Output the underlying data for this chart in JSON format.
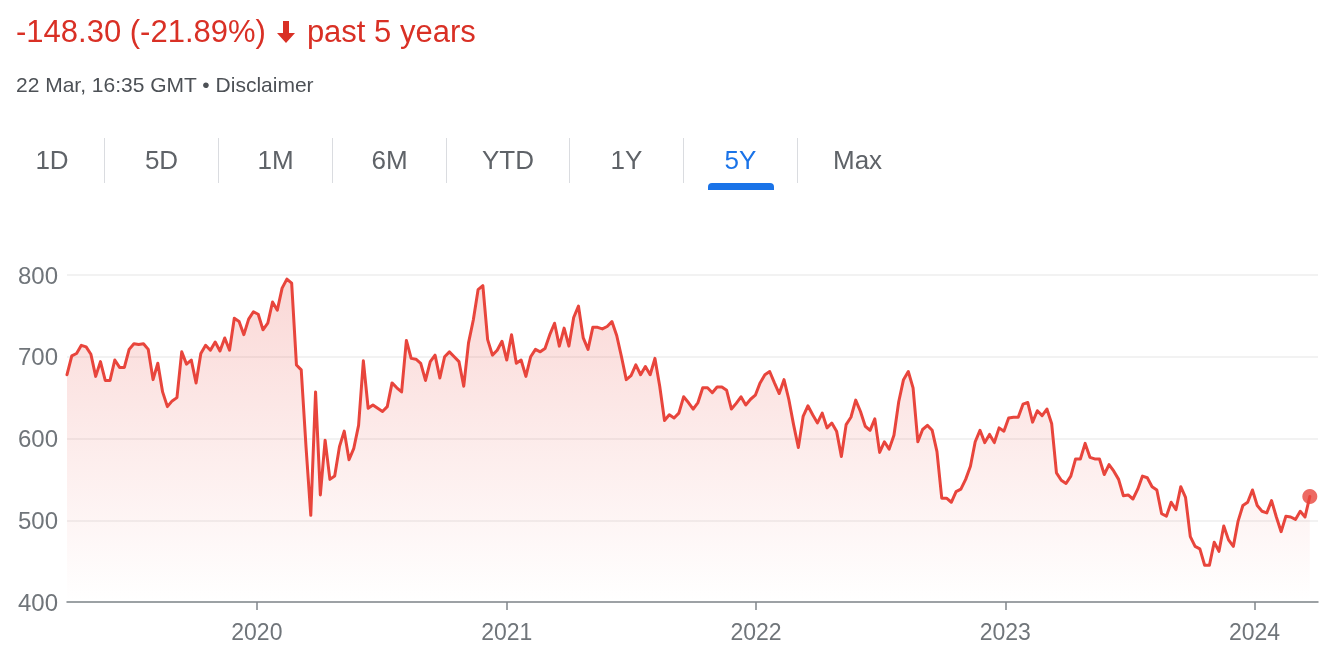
{
  "chart_data": {
    "type": "area",
    "title": "-148.30 (-21.89%)",
    "subtitle": "22 Mar, 16:35 GMT • Disclaimer",
    "annotations": [
      "past 5 years",
      "1D",
      "5D",
      "1M",
      "6M",
      "YTD",
      "1Y",
      "5Y",
      "Max"
    ],
    "series": [
      {
        "color": "#e8453c",
        "x": [
          "2019-03-29",
          "2019-04-05",
          "2019-04-12",
          "2019-04-19",
          "2019-04-26",
          "2019-05-03",
          "2019-05-10",
          "2019-05-17",
          "2019-05-24",
          "2019-05-31",
          "2019-06-07",
          "2019-06-14",
          "2019-06-21",
          "2019-06-28",
          "2019-07-05",
          "2019-07-12",
          "2019-07-19",
          "2019-07-26",
          "2019-08-02",
          "2019-08-09",
          "2019-08-16",
          "2019-08-23",
          "2019-08-30",
          "2019-09-06",
          "2019-09-13",
          "2019-09-20",
          "2019-09-27",
          "2019-10-04",
          "2019-10-11",
          "2019-10-18",
          "2019-10-25",
          "2019-11-01",
          "2019-11-08",
          "2019-11-15",
          "2019-11-22",
          "2019-11-29",
          "2019-12-06",
          "2019-12-13",
          "2019-12-20",
          "2019-12-27",
          "2020-01-03",
          "2020-01-10",
          "2020-01-17",
          "2020-01-24",
          "2020-01-31",
          "2020-02-07",
          "2020-02-14",
          "2020-02-21",
          "2020-02-28",
          "2020-03-06",
          "2020-03-13",
          "2020-03-20",
          "2020-03-27",
          "2020-04-03",
          "2020-04-10",
          "2020-04-17",
          "2020-04-24",
          "2020-05-01",
          "2020-05-08",
          "2020-05-15",
          "2020-05-22",
          "2020-05-29",
          "2020-06-05",
          "2020-06-12",
          "2020-06-19",
          "2020-06-26",
          "2020-07-03",
          "2020-07-10",
          "2020-07-17",
          "2020-07-24",
          "2020-07-31",
          "2020-08-07",
          "2020-08-14",
          "2020-08-21",
          "2020-08-28",
          "2020-09-04",
          "2020-09-11",
          "2020-09-18",
          "2020-09-25",
          "2020-10-02",
          "2020-10-09",
          "2020-10-16",
          "2020-10-23",
          "2020-10-30",
          "2020-11-06",
          "2020-11-13",
          "2020-11-20",
          "2020-11-27",
          "2020-12-04",
          "2020-12-11",
          "2020-12-18",
          "2020-12-25",
          "2021-01-01",
          "2021-01-08",
          "2021-01-15",
          "2021-01-22",
          "2021-01-29",
          "2021-02-05",
          "2021-02-12",
          "2021-02-19",
          "2021-02-26",
          "2021-03-05",
          "2021-03-12",
          "2021-03-19",
          "2021-03-26",
          "2021-04-02",
          "2021-04-09",
          "2021-04-16",
          "2021-04-23",
          "2021-04-30",
          "2021-05-07",
          "2021-05-14",
          "2021-05-21",
          "2021-05-28",
          "2021-06-04",
          "2021-06-11",
          "2021-06-18",
          "2021-06-25",
          "2021-07-02",
          "2021-07-09",
          "2021-07-16",
          "2021-07-23",
          "2021-07-30",
          "2021-08-06",
          "2021-08-13",
          "2021-08-20",
          "2021-08-27",
          "2021-09-03",
          "2021-09-10",
          "2021-09-17",
          "2021-09-24",
          "2021-10-01",
          "2021-10-08",
          "2021-10-15",
          "2021-10-22",
          "2021-10-29",
          "2021-11-05",
          "2021-11-12",
          "2021-11-19",
          "2021-11-26",
          "2021-12-03",
          "2021-12-10",
          "2021-12-17",
          "2021-12-24",
          "2021-12-31",
          "2022-01-07",
          "2022-01-14",
          "2022-01-21",
          "2022-01-28",
          "2022-02-04",
          "2022-02-11",
          "2022-02-18",
          "2022-02-25",
          "2022-03-04",
          "2022-03-11",
          "2022-03-18",
          "2022-03-25",
          "2022-04-01",
          "2022-04-08",
          "2022-04-15",
          "2022-04-22",
          "2022-04-29",
          "2022-05-06",
          "2022-05-13",
          "2022-05-20",
          "2022-05-27",
          "2022-06-03",
          "2022-06-10",
          "2022-06-17",
          "2022-06-24",
          "2022-07-01",
          "2022-07-08",
          "2022-07-15",
          "2022-07-22",
          "2022-07-29",
          "2022-08-05",
          "2022-08-12",
          "2022-08-19",
          "2022-08-26",
          "2022-09-02",
          "2022-09-09",
          "2022-09-16",
          "2022-09-23",
          "2022-09-30",
          "2022-10-07",
          "2022-10-14",
          "2022-10-21",
          "2022-10-28",
          "2022-11-04",
          "2022-11-11",
          "2022-11-18",
          "2022-11-25",
          "2022-12-02",
          "2022-12-09",
          "2022-12-16",
          "2022-12-23",
          "2022-12-30",
          "2023-01-06",
          "2023-01-13",
          "2023-01-20",
          "2023-01-27",
          "2023-02-03",
          "2023-02-10",
          "2023-02-17",
          "2023-02-24",
          "2023-03-03",
          "2023-03-10",
          "2023-03-17",
          "2023-03-24",
          "2023-03-31",
          "2023-04-07",
          "2023-04-14",
          "2023-04-21",
          "2023-04-28",
          "2023-05-05",
          "2023-05-12",
          "2023-05-19",
          "2023-05-26",
          "2023-06-02",
          "2023-06-09",
          "2023-06-16",
          "2023-06-23",
          "2023-06-30",
          "2023-07-07",
          "2023-07-14",
          "2023-07-21",
          "2023-07-28",
          "2023-08-04",
          "2023-08-11",
          "2023-08-18",
          "2023-08-25",
          "2023-09-01",
          "2023-09-08",
          "2023-09-15",
          "2023-09-22",
          "2023-09-29",
          "2023-10-06",
          "2023-10-13",
          "2023-10-20",
          "2023-10-27",
          "2023-11-03",
          "2023-11-10",
          "2023-11-17",
          "2023-11-24",
          "2023-12-01",
          "2023-12-08",
          "2023-12-15",
          "2023-12-22",
          "2023-12-29",
          "2024-01-05",
          "2024-01-12",
          "2024-01-19",
          "2024-01-26",
          "2024-02-02",
          "2024-02-09",
          "2024-02-16",
          "2024-02-23",
          "2024-03-01",
          "2024-03-08",
          "2024-03-15",
          "2024-03-22"
        ],
        "values": [
          678,
          701,
          704,
          714,
          712,
          703,
          676,
          694,
          671,
          671,
          696,
          687,
          687,
          709,
          716,
          715,
          716,
          709,
          672,
          692,
          657,
          639,
          646,
          650,
          706,
          691,
          696,
          668,
          704,
          714,
          708,
          718,
          707,
          723,
          708,
          747,
          743,
          727,
          746,
          755,
          752,
          733,
          741,
          767,
          757,
          784,
          795,
          790,
          690,
          684,
          590,
          506,
          657,
          531,
          598,
          550,
          554,
          590,
          609,
          574,
          588,
          616,
          695,
          637,
          641,
          637,
          633,
          639,
          668,
          662,
          657,
          720,
          698,
          697,
          692,
          671,
          694,
          702,
          674,
          700,
          706,
          700,
          694,
          664,
          717,
          745,
          782,
          787,
          721,
          702,
          708,
          719,
          696,
          727,
          692,
          696,
          676,
          700,
          709,
          706,
          710,
          727,
          741,
          713,
          735,
          713,
          748,
          762,
          723,
          709,
          736,
          736,
          734,
          737,
          743,
          726,
          700,
          672,
          677,
          690,
          678,
          688,
          678,
          698,
          664,
          622,
          629,
          625,
          631,
          651,
          644,
          636,
          644,
          662,
          662,
          656,
          663,
          663,
          659,
          636,
          643,
          651,
          641,
          648,
          653,
          668,
          678,
          682,
          668,
          655,
          672,
          648,
          617,
          589,
          627,
          640,
          629,
          619,
          631,
          613,
          619,
          609,
          578,
          617,
          626,
          647,
          633,
          615,
          610,
          624,
          583,
          596,
          587,
          604,
          645,
          672,
          682,
          662,
          596,
          611,
          616,
          610,
          584,
          527,
          527,
          522,
          535,
          538,
          550,
          566,
          596,
          610,
          595,
          605,
          595,
          613,
          609,
          625,
          626,
          626,
          642,
          644,
          620,
          634,
          628,
          636,
          618,
          558,
          549,
          545,
          554,
          575,
          575,
          594,
          577,
          575,
          575,
          556,
          568,
          560,
          550,
          530,
          531,
          526,
          538,
          554,
          552,
          541,
          537,
          508,
          505,
          522,
          513,
          541,
          528,
          480,
          468,
          465,
          445,
          445,
          473,
          462,
          493,
          476,
          468,
          499,
          518,
          522,
          537,
          518,
          511,
          509,
          524,
          504,
          486,
          505,
          504,
          501,
          511,
          504,
          529
        ]
      },
      {
        "type": "scatter",
        "color": "#e8453c",
        "marker": "circle",
        "x": [
          "2024-03-22"
        ],
        "values": [
          529
        ]
      }
    ],
    "xlim": [
      "2019-03-29",
      "2024-04-03"
    ],
    "xticks": [
      "2020",
      "2021",
      "2022",
      "2023",
      "2024"
    ],
    "ylim": [
      400,
      800
    ],
    "yticks": [
      400,
      500,
      600,
      700,
      800
    ],
    "grid": "y"
  }
}
